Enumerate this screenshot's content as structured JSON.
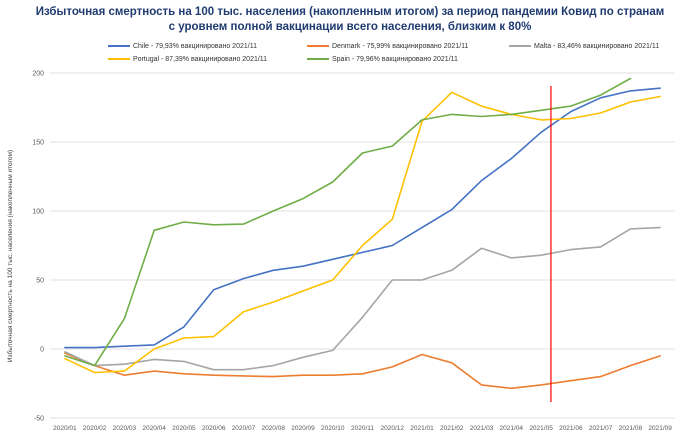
{
  "chart_data": {
    "type": "line",
    "title_lines": [
      "Избыточная смертность на 100 тыс. населения (накопленным итогом) за период пандемии Ковид  по странам",
      "с уровнем полной вакцинации всего населения, близким к 80%"
    ],
    "ylabel": "Избыточная смертность на 100 тыс. населения (накопленным итогом)",
    "xlabel": "",
    "ylim": [
      -50,
      200
    ],
    "yticks": [
      -50,
      0,
      50,
      100,
      150,
      200
    ],
    "grid": "horizontal",
    "categories": [
      "2020/01",
      "2020/02",
      "2020/03",
      "2020/04",
      "2020/05",
      "2020/06",
      "2020/07",
      "2020/08",
      "2020/09",
      "2020/10",
      "2020/11",
      "2020/12",
      "2021/01",
      "2021/02",
      "2021/03",
      "2021/04",
      "2021/05",
      "2021/06",
      "2021/07",
      "2021/08",
      "2021/09"
    ],
    "series": [
      {
        "name": "Chile - 79,93% вакцинировано 2021/11",
        "color": "#4472c4",
        "values": [
          1,
          1,
          2,
          3,
          16,
          43,
          51,
          57,
          60,
          65,
          70,
          75,
          88,
          101,
          122,
          138,
          157,
          172,
          182,
          187,
          189
        ]
      },
      {
        "name": "Denmark - 75,99% вакцинировано 2021/11",
        "color": "#ed7d31",
        "values": [
          -3,
          -12,
          -19,
          -16,
          -18,
          -19,
          -19.5,
          -20,
          -19,
          -19,
          -18,
          -13,
          -4,
          -10,
          -26,
          -28.5,
          -26,
          -23,
          -20,
          -12,
          -5
        ]
      },
      {
        "name": "Malta - 83,46% вакцинировано 2021/11",
        "color": "#a5a5a5",
        "values": [
          -2,
          -12,
          -11,
          -7.5,
          -9,
          -15,
          -15,
          -12,
          -6,
          -1,
          23,
          50,
          50,
          57,
          73,
          66,
          68,
          72,
          74,
          87,
          88
        ]
      },
      {
        "name": "Portugal - 87,39% вакцинировано 2021/11",
        "color": "#ffc000",
        "values": [
          -7,
          -17,
          -16,
          0,
          8,
          9,
          27,
          34,
          42,
          50,
          75,
          94,
          165,
          186,
          176,
          170,
          166,
          167,
          171,
          179,
          183
        ]
      },
      {
        "name": "Spain - 79,96% вакцинировано 2021/11",
        "color": "#70ad47",
        "values": [
          -5,
          -12,
          22,
          86,
          92,
          90,
          90.5,
          100,
          109,
          121,
          142,
          147,
          166,
          170,
          168.5,
          170,
          173,
          176,
          184,
          196,
          null
        ]
      }
    ],
    "vline": {
      "between": [
        "2021/05",
        "2021/06"
      ],
      "color": "#ff0000"
    }
  }
}
